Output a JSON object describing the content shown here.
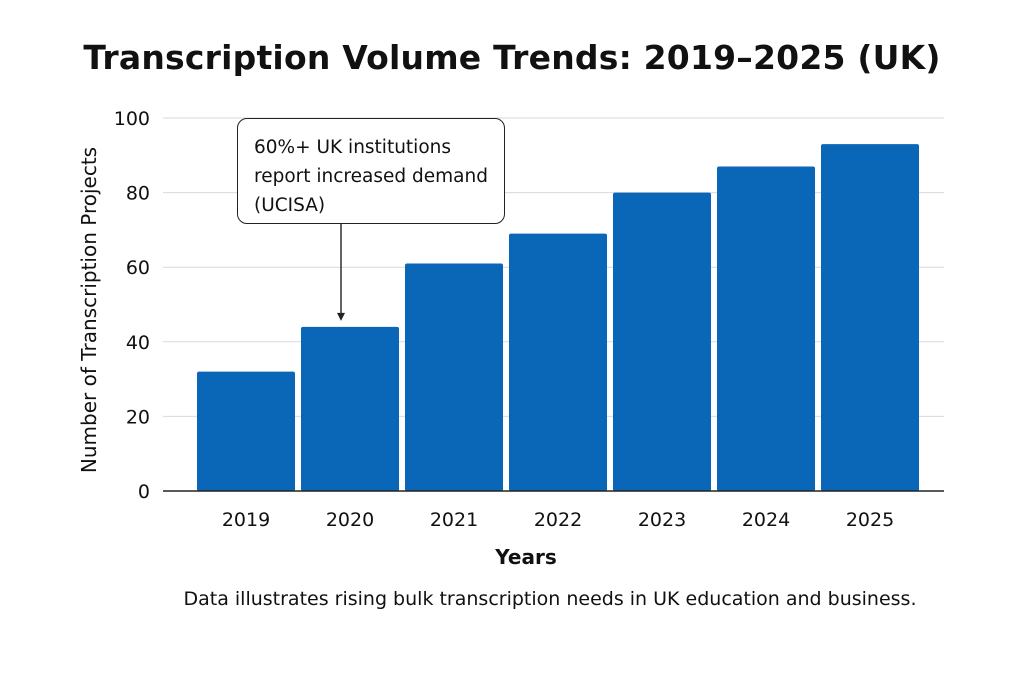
{
  "chart_data": {
    "type": "bar",
    "title": "Transcription Volume Trends: 2019–2025 (UK)",
    "xlabel": "Years",
    "ylabel": "Number of Transcription Projects",
    "categories": [
      "2019",
      "2020",
      "2021",
      "2022",
      "2023",
      "2024",
      "2025"
    ],
    "values": [
      32,
      44,
      61,
      69,
      80,
      87,
      93
    ],
    "ylim": [
      0,
      100
    ],
    "yticks": [
      "0",
      "20",
      "40",
      "60",
      "80",
      "100"
    ],
    "grid": true,
    "bar_color": "#0a66b7",
    "annotation": {
      "text": "60%+ UK institutions\nreport increased demand\n(UCISA)",
      "target_category": "2020"
    },
    "caption": "Data illustrates rising bulk transcription needs in UK education and business."
  }
}
